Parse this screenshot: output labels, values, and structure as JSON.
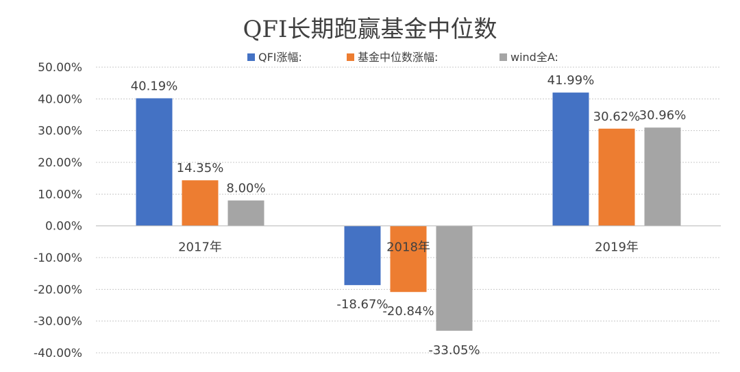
{
  "chart_data": {
    "type": "bar",
    "title": "QFI长期跑赢基金中位数",
    "categories": [
      "2017年",
      "2018年",
      "2019年"
    ],
    "series": [
      {
        "name": "QFI涨幅:",
        "color": "#4472C4",
        "values": [
          40.19,
          -18.67,
          41.99
        ],
        "labels": [
          "40.19%",
          "-18.67%",
          "41.99%"
        ]
      },
      {
        "name": "基金中位数涨幅:",
        "color": "#ED7D31",
        "values": [
          14.35,
          -20.84,
          30.62
        ],
        "labels": [
          "14.35%",
          "-20.84%",
          "30.62%"
        ]
      },
      {
        "name": "wind全A:",
        "color": "#A5A5A5",
        "values": [
          8.0,
          -33.05,
          30.96
        ],
        "labels": [
          "8.00%",
          "-33.05%",
          "30.96%"
        ]
      }
    ],
    "ylim": [
      -40,
      50
    ],
    "yticks": [
      "50.00%",
      "40.00%",
      "30.00%",
      "20.00%",
      "10.00%",
      "0.00%",
      "-10.00%",
      "-20.00%",
      "-30.00%",
      "-40.00%"
    ],
    "legend_position": "top",
    "grid": true
  }
}
